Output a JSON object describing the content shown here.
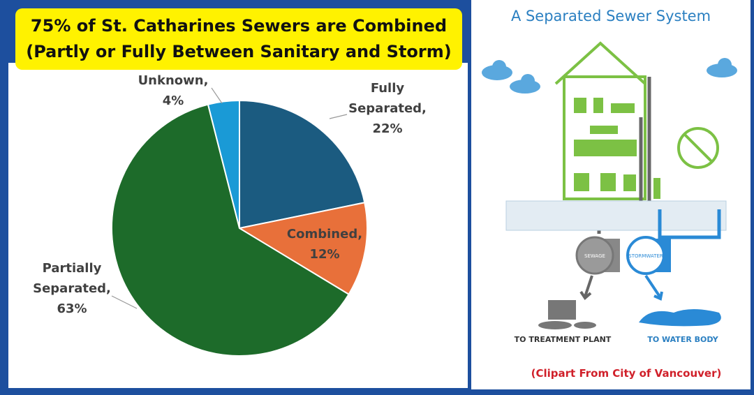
{
  "chart_data": {
    "type": "pie",
    "title": "75% of St. Catharines Sewers are Combined",
    "subtitle": "(Partly or Fully Between Sanitary and Storm)",
    "categories": [
      "Fully Separated,",
      "Combined,",
      "Partially Separated,",
      "Unknown,"
    ],
    "values": [
      22,
      12,
      63,
      4
    ],
    "value_labels": [
      "22%",
      "12%",
      "63%",
      "4%"
    ],
    "colors": [
      "#1b5b80",
      "#e8703a",
      "#1d6b2a",
      "#1a9ad6"
    ]
  },
  "diagram": {
    "title": "A Separated Sewer System",
    "pipes": [
      "SEWAGE",
      "STORMWATER"
    ],
    "destinations": [
      "TO TREATMENT PLANT",
      "TO WATER BODY"
    ],
    "credit": "(Clipart From City of Vancouver)"
  }
}
